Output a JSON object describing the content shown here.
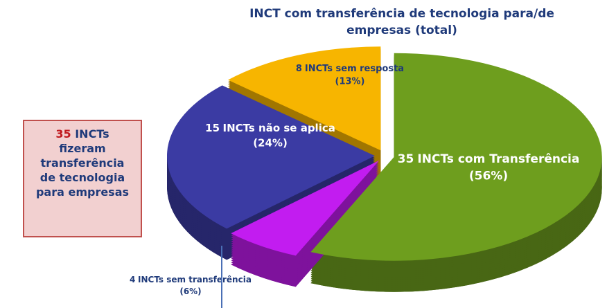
{
  "chart_data": {
    "type": "pie",
    "title": "INCT com transferência de tecnologia para/de empresas (total)",
    "categories": [
      "INCTs com Transferência",
      "INCTs sem transferência",
      "INCTs não se aplica",
      "INCTs sem resposta"
    ],
    "counts": [
      35,
      4,
      15,
      8
    ],
    "values": [
      56,
      6,
      24,
      13
    ],
    "value_labels": [
      "(56%)",
      "(6%)",
      "(24%)",
      "(13%)"
    ],
    "colors": [
      "#6e9e1e",
      "#c21cf0",
      "#3b3ba3",
      "#f7b500"
    ],
    "callout": {
      "count": 35,
      "text": "INCTs fizeram transferência de tecnologia para empresas"
    }
  }
}
